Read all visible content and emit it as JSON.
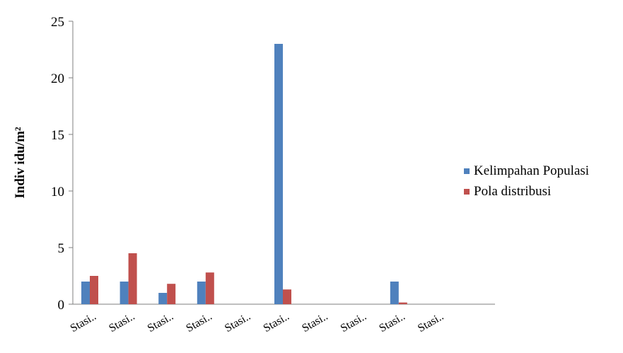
{
  "chart_data": {
    "type": "bar",
    "categories": [
      "Stasi..",
      "Stasi..",
      "Stasi..",
      "Stasi..",
      "Stasi..",
      "Stasi..",
      "Stasi..",
      "Stasi..",
      "Stasi..",
      "Stasi.."
    ],
    "series": [
      {
        "name": "Kelimpahan Populasi",
        "color": "#4f81bd",
        "values": [
          2,
          2,
          1,
          2,
          0,
          23,
          0,
          0,
          2,
          0
        ]
      },
      {
        "name": "Pola distribusi",
        "color": "#c0504d",
        "values": [
          2.5,
          4.5,
          1.8,
          2.8,
          0,
          1.3,
          0,
          0,
          0.15,
          0
        ]
      }
    ],
    "ylabel": "Indiv idu/m²",
    "ylim": [
      0,
      25
    ],
    "yticks": [
      "0",
      "5",
      "10",
      "15",
      "20",
      "25"
    ],
    "ytick_values": [
      0,
      5,
      10,
      15,
      20,
      25
    ],
    "grid": false,
    "legend_position": "right"
  }
}
